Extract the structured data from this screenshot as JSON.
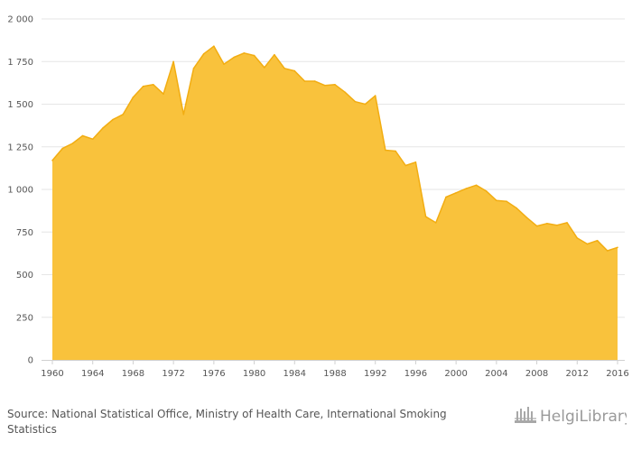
{
  "chart_data": {
    "type": "area",
    "title": "",
    "xlabel": "",
    "ylabel": "",
    "ylim": [
      0,
      2000
    ],
    "xlim": [
      1960,
      2016
    ],
    "y_ticks": [
      "0",
      "250",
      "500",
      "750",
      "1 000",
      "1 250",
      "1 500",
      "1 750",
      "2 000"
    ],
    "x_ticks": [
      "1960",
      "1964",
      "1968",
      "1972",
      "1976",
      "1980",
      "1984",
      "1988",
      "1992",
      "1996",
      "2000",
      "2004",
      "2008",
      "2012",
      "2016"
    ],
    "grid": "horizontal",
    "legend": "none",
    "colors": {
      "fill": "#f9c23c",
      "line": "#f2ad12",
      "grid": "#e6e6e6",
      "axis": "#d0d0d0"
    },
    "x": [
      1960,
      1961,
      1962,
      1963,
      1964,
      1965,
      1966,
      1967,
      1968,
      1969,
      1970,
      1971,
      1972,
      1973,
      1974,
      1975,
      1976,
      1977,
      1978,
      1979,
      1980,
      1981,
      1982,
      1983,
      1984,
      1985,
      1986,
      1987,
      1988,
      1989,
      1990,
      1991,
      1992,
      1993,
      1994,
      1995,
      1996,
      1997,
      1998,
      1999,
      2000,
      2001,
      2002,
      2003,
      2004,
      2005,
      2006,
      2007,
      2008,
      2009,
      2010,
      2011,
      2012,
      2013,
      2014,
      2015,
      2016
    ],
    "series": [
      {
        "values": [
          1170,
          1240,
          1270,
          1315,
          1295,
          1360,
          1410,
          1440,
          1540,
          1605,
          1615,
          1560,
          1750,
          1440,
          1710,
          1795,
          1840,
          1735,
          1775,
          1800,
          1785,
          1715,
          1790,
          1710,
          1695,
          1635,
          1635,
          1610,
          1615,
          1570,
          1515,
          1500,
          1550,
          1230,
          1225,
          1140,
          1160,
          840,
          805,
          955,
          980,
          1005,
          1025,
          990,
          935,
          930,
          890,
          835,
          785,
          800,
          790,
          805,
          715,
          680,
          700,
          640,
          660
        ]
      }
    ]
  },
  "footer": {
    "source_label": "Source:",
    "source_text": "National Statistical Office, Ministry of Health Care, International Smoking Statistics",
    "logo_text": "HelgiLibrary"
  }
}
